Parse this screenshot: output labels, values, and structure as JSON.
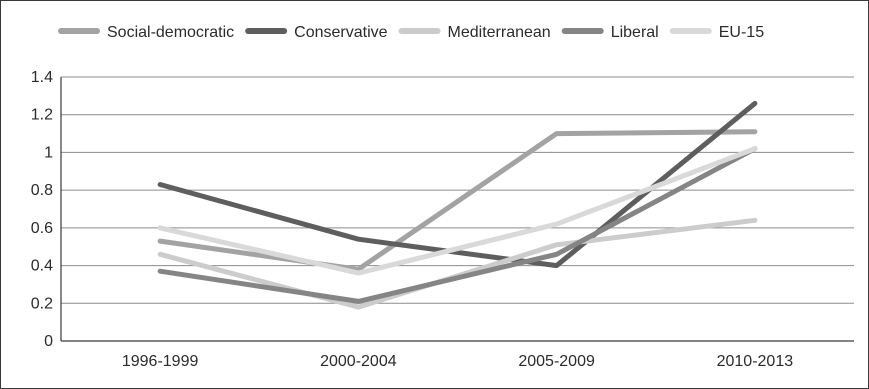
{
  "chart_data": {
    "type": "line",
    "title": "",
    "xlabel": "",
    "ylabel": "",
    "categories": [
      "1996-1999",
      "2000-2004",
      "2005-2009",
      "2010-2013"
    ],
    "y_ticks": [
      "0",
      "0.2",
      "0.4",
      "0.6",
      "0.8",
      "1",
      "1.2",
      "1.4"
    ],
    "ylim": [
      0,
      1.4
    ],
    "grid": true,
    "legend_position": "top",
    "series": [
      {
        "name": "Social-democratic",
        "color": "#a3a3a3",
        "values": [
          0.53,
          0.38,
          1.1,
          1.11
        ]
      },
      {
        "name": "Conservative",
        "color": "#5e5e5e",
        "values": [
          0.83,
          0.54,
          0.4,
          1.26
        ]
      },
      {
        "name": "Mediterranean",
        "color": "#cccccc",
        "values": [
          0.46,
          0.18,
          0.51,
          0.64
        ]
      },
      {
        "name": "Liberal",
        "color": "#858585",
        "values": [
          0.37,
          0.21,
          0.46,
          1.02
        ]
      },
      {
        "name": "EU-15",
        "color": "#d9d9d9",
        "values": [
          0.6,
          0.36,
          0.62,
          1.02
        ]
      }
    ]
  }
}
